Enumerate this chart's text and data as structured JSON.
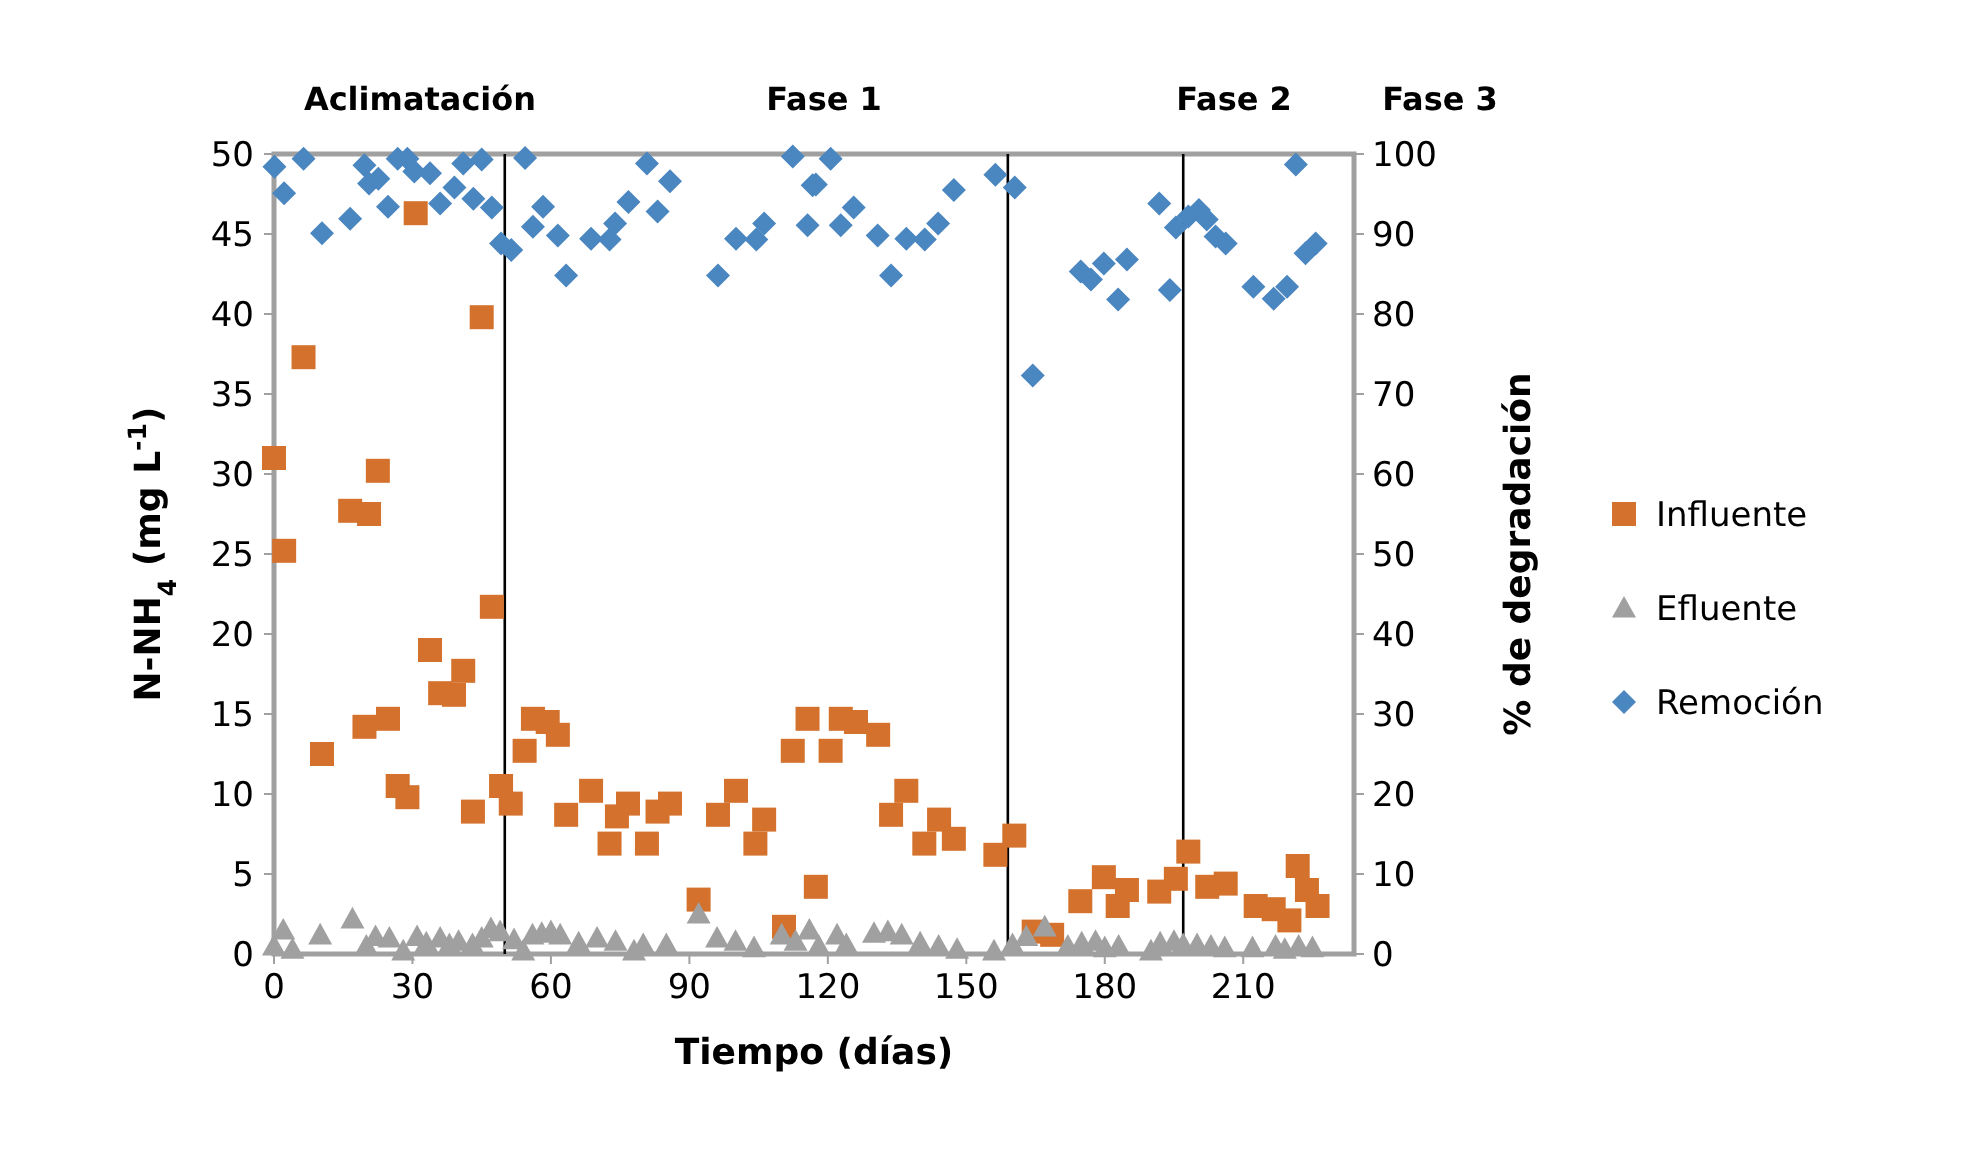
{
  "chart_data": {
    "type": "scatter",
    "xlabel": "Tiempo (días)",
    "ylabel": "N-NH$_{4}$ (mg L$^{-1}$)",
    "y2label": "% de degradación",
    "xlim": [
      0,
      234
    ],
    "xticks": [
      0,
      30,
      60,
      90,
      120,
      150,
      180,
      210
    ],
    "ylim": [
      0,
      50
    ],
    "yticks": [
      0,
      5,
      10,
      15,
      20,
      25,
      30,
      35,
      40,
      45,
      50
    ],
    "y2lim": [
      0,
      100
    ],
    "y2ticks": [
      0,
      10,
      20,
      30,
      40,
      50,
      60,
      70,
      80,
      90,
      100
    ],
    "grid": false,
    "legend": "right",
    "ref_lines": [
      {
        "axis": "x",
        "value": 50,
        "color": "#000000"
      },
      {
        "axis": "x",
        "value": 159,
        "color": "#000000"
      },
      {
        "axis": "x",
        "value": 197,
        "color": "#000000"
      }
    ],
    "annotations": [
      "Aclimatación",
      "Fase 1",
      "Fase 2",
      "Fase 3"
    ],
    "series": [
      {
        "name": "Influente",
        "color": "#d4712c",
        "marker": "square",
        "x": [
          0,
          6.4,
          2.2,
          10.4,
          30.7,
          45,
          22.5,
          16.5,
          20.6,
          47.2,
          33.8,
          41,
          36,
          39,
          19.6,
          24.7,
          26.8,
          28.9,
          43.1,
          49.2,
          51.3,
          56.1,
          59.3,
          54.3,
          61.5,
          63.3,
          68.7,
          72.7,
          74.3,
          76.7,
          80.8,
          83.1,
          85.8,
          92,
          96.2,
          100.1,
          106.2,
          104.3,
          110.5,
          112.4,
          115.6,
          117.4,
          120.6,
          122.8,
          126.1,
          130.9,
          137,
          133.7,
          140.9,
          144.1,
          147.3,
          156.3,
          160.4,
          164.6,
          168.6,
          174.7,
          179.8,
          182.8,
          184.8,
          191.8,
          195.4,
          198.1,
          202.2,
          206.2,
          212.7,
          216.6,
          220,
          221.8,
          223.8,
          226.1
        ],
        "values": [
          31,
          37.3,
          25.2,
          12.5,
          46.3,
          39.8,
          30.2,
          27.7,
          27.5,
          21.7,
          19,
          17.7,
          16.3,
          16.2,
          14.2,
          14.7,
          10.5,
          9.8,
          8.9,
          10.5,
          9.4,
          14.7,
          14.5,
          12.7,
          13.7,
          8.7,
          10.2,
          6.9,
          8.6,
          9.4,
          6.9,
          8.9,
          9.4,
          3.4,
          8.7,
          10.2,
          8.4,
          6.9,
          1.7,
          12.7,
          14.7,
          4.2,
          12.7,
          14.7,
          14.5,
          13.7,
          10.2,
          8.7,
          6.9,
          8.4,
          7.2,
          6.2,
          7.4,
          1.4,
          1.2,
          3.3,
          4.8,
          3,
          4,
          3.9,
          4.7,
          6.4,
          4.2,
          4.4,
          3,
          2.8,
          2.1,
          5.5,
          4,
          3
        ]
      },
      {
        "name": "Efluente",
        "color": "#a0a0a0",
        "marker": "triangle",
        "x": [
          0,
          2,
          4,
          10,
          17,
          20,
          22,
          25,
          28,
          31,
          33,
          36,
          38,
          40,
          43,
          45,
          47,
          49,
          52,
          54,
          56,
          58,
          60,
          62,
          66,
          70,
          74,
          78,
          80,
          85,
          92,
          96,
          100,
          104,
          110,
          113,
          116,
          118,
          122,
          124,
          130,
          133,
          136,
          140,
          144,
          148,
          156,
          160,
          163,
          167,
          172,
          175,
          178,
          180,
          183,
          190,
          192,
          195,
          197,
          200,
          203,
          206,
          212,
          217,
          219,
          222,
          225
        ],
        "values": [
          0.5,
          1.5,
          0.3,
          1.2,
          2.2,
          0.5,
          1.1,
          1,
          0.2,
          1.1,
          0.7,
          1,
          0.6,
          0.8,
          0.6,
          1,
          1.6,
          1.4,
          0.9,
          0.2,
          1.2,
          1.3,
          1.4,
          1.2,
          0.7,
          1,
          0.8,
          0.2,
          0.6,
          0.6,
          2.5,
          1,
          0.8,
          0.4,
          1.2,
          0.8,
          1.5,
          0.5,
          1.2,
          0.6,
          1.3,
          1.4,
          1.2,
          0.7,
          0.5,
          0.3,
          0.2,
          0.6,
          1.1,
          1.7,
          0.5,
          0.7,
          0.8,
          0.4,
          0.5,
          0.2,
          0.7,
          0.8,
          0.6,
          0.6,
          0.5,
          0.4,
          0.4,
          0.5,
          0.3,
          0.5,
          0.4
        ]
      },
      {
        "name": "Remoción",
        "color": "#4a86c0",
        "marker": "diamond",
        "axis": "y2",
        "x": [
          0.1,
          2.2,
          6.4,
          10.4,
          16.5,
          19.6,
          20.6,
          22.6,
          24.7,
          26.8,
          28.9,
          30.4,
          33.8,
          36,
          39.1,
          41,
          43.2,
          45,
          47.2,
          49.2,
          51.4,
          54.4,
          56.1,
          58.3,
          61.5,
          63.3,
          68.7,
          72.7,
          73.9,
          76.8,
          80.8,
          83.1,
          85.8,
          96.2,
          100.1,
          104.5,
          106.2,
          112.4,
          115.6,
          116.7,
          120.6,
          117.4,
          122.8,
          125.6,
          130.8,
          133.7,
          137,
          141,
          143.9,
          147.3,
          156.3,
          160.5,
          164.4,
          174.8,
          177,
          179.8,
          182.9,
          184.8,
          191.8,
          194.1,
          195.4,
          198.1,
          200.4,
          202.1,
          204,
          206.2,
          212.2,
          216.6,
          219.5,
          221.4,
          223.5,
          225.7
        ],
        "values": [
          98.4,
          95.1,
          99.4,
          90.1,
          91.9,
          98.6,
          96.3,
          96.9,
          93.4,
          99.4,
          99.4,
          97.8,
          97.6,
          93.8,
          95.8,
          98.8,
          94.4,
          99.3,
          93.3,
          88.8,
          88,
          99.5,
          90.9,
          93.4,
          89.8,
          84.8,
          89.4,
          89.3,
          91.3,
          94,
          98.8,
          92.8,
          96.6,
          84.8,
          89.4,
          89.3,
          91.3,
          99.7,
          91.1,
          96.1,
          99.4,
          96.2,
          91.1,
          93.3,
          89.8,
          84.8,
          89.4,
          89.3,
          91.3,
          95.5,
          97.4,
          95.8,
          72.3,
          85.3,
          84.3,
          86.3,
          81.8,
          86.8,
          93.8,
          83,
          90.8,
          92.2,
          93,
          91.8,
          89.7,
          88.8,
          83.4,
          81.9,
          83.4,
          98.7,
          87.6,
          88.8
        ]
      }
    ]
  }
}
